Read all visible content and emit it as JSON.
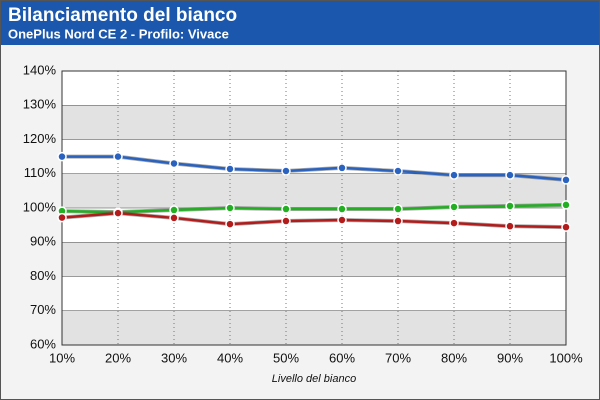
{
  "chart_data": {
    "type": "line",
    "title": "Bilanciamento del bianco",
    "subtitle": "OnePlus Nord CE 2 - Profilo: Vivace",
    "x_label": "Livello del bianco",
    "categories": [
      "10%",
      "20%",
      "30%",
      "40%",
      "50%",
      "60%",
      "70%",
      "80%",
      "90%",
      "100%"
    ],
    "series": [
      {
        "color": "#2a62c0",
        "values": [
          115,
          115,
          113,
          111.4,
          110.8,
          111.7,
          110.8,
          109.6,
          109.6,
          108.2
        ]
      },
      {
        "color": "#22b022",
        "values": [
          99.1,
          98.8,
          99.4,
          100,
          99.7,
          99.7,
          99.7,
          100.3,
          100.6,
          100.9
        ]
      },
      {
        "color": "#b41c1c",
        "values": [
          97.2,
          98.5,
          97.1,
          95.3,
          96.2,
          96.5,
          96.2,
          95.6,
          94.7,
          94.4
        ]
      }
    ],
    "ylim": [
      60,
      140
    ],
    "yticks": [
      {
        "value": 60,
        "label": "60%"
      },
      {
        "value": 70,
        "label": "70%"
      },
      {
        "value": 80,
        "label": "80%"
      },
      {
        "value": 90,
        "label": "90%"
      },
      {
        "value": 100,
        "label": "100%"
      },
      {
        "value": 110,
        "label": "110%"
      },
      {
        "value": 120,
        "label": "120%"
      },
      {
        "value": 130,
        "label": "130%"
      },
      {
        "value": 140,
        "label": "140%"
      }
    ],
    "grid": true
  }
}
